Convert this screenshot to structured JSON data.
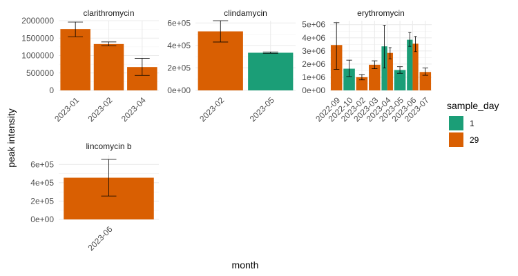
{
  "chart_data": {
    "type": "bar",
    "xlabel": "month",
    "ylabel": "peak intensity",
    "legend": {
      "title": "sample_day",
      "placement": "right",
      "entries": [
        {
          "label": "1",
          "color": "#1b9e77"
        },
        {
          "label": "29",
          "color": "#d95f02"
        }
      ]
    },
    "grid": true,
    "panels": [
      {
        "title": "clarithromycin",
        "ylim": [
          0,
          2000000
        ],
        "yticks": [
          0,
          500000,
          1000000,
          1500000,
          2000000
        ],
        "ytick_labels": [
          "0",
          "500000",
          "1000000",
          "1500000",
          "2000000"
        ],
        "categories": [
          "2023-01",
          "2023-02",
          "2023-04"
        ],
        "bars": [
          {
            "category": "2023-01",
            "sample_day": "29",
            "value": 1760000,
            "err_low": 1540000,
            "err_high": 1960000
          },
          {
            "category": "2023-02",
            "sample_day": "29",
            "value": 1330000,
            "err_low": 1280000,
            "err_high": 1390000
          },
          {
            "category": "2023-04",
            "sample_day": "29",
            "value": 670000,
            "err_low": 430000,
            "err_high": 920000
          }
        ]
      },
      {
        "title": "clindamycin",
        "ylim": [
          0,
          620000
        ],
        "yticks": [
          0,
          200000,
          400000,
          600000
        ],
        "ytick_labels": [
          "0e+00",
          "2e+05",
          "4e+05",
          "6e+05"
        ],
        "categories": [
          "2023-02",
          "2023-05"
        ],
        "bars": [
          {
            "category": "2023-02",
            "sample_day": "29",
            "value": 525000,
            "err_low": 430000,
            "err_high": 620000
          },
          {
            "category": "2023-05",
            "sample_day": "1",
            "value": 335000,
            "err_low": 330000,
            "err_high": 342000
          }
        ]
      },
      {
        "title": "erythromycin",
        "ylim": [
          0,
          5300000
        ],
        "yticks": [
          0,
          1000000,
          2000000,
          3000000,
          4000000,
          5000000
        ],
        "ytick_labels": [
          "0e+00",
          "1e+06",
          "2e+06",
          "3e+06",
          "4e+06",
          "5e+06"
        ],
        "categories": [
          "2022-09",
          "2022-10",
          "2023-02",
          "2023-03",
          "2023-04",
          "2023-05",
          "2023-06",
          "2023-07"
        ],
        "bars": [
          {
            "category": "2022-09",
            "sample_day": "29",
            "value": 3450000,
            "err_low": 1600000,
            "err_high": 5150000
          },
          {
            "category": "2022-10",
            "sample_day": "1",
            "value": 1650000,
            "err_low": 1050000,
            "err_high": 2300000
          },
          {
            "category": "2023-02",
            "sample_day": "29",
            "value": 1000000,
            "err_low": 800000,
            "err_high": 1200000
          },
          {
            "category": "2023-03",
            "sample_day": "29",
            "value": 1950000,
            "err_low": 1650000,
            "err_high": 2250000
          },
          {
            "category": "2023-04",
            "sample_day": "1",
            "value": 3350000,
            "err_low": 1700000,
            "err_high": 4950000
          },
          {
            "category": "2023-04",
            "sample_day": "29",
            "value": 2850000,
            "err_low": 2400000,
            "err_high": 3250000
          },
          {
            "category": "2023-05",
            "sample_day": "1",
            "value": 1550000,
            "err_low": 1300000,
            "err_high": 1800000
          },
          {
            "category": "2023-06",
            "sample_day": "1",
            "value": 3850000,
            "err_low": 3350000,
            "err_high": 4400000
          },
          {
            "category": "2023-06",
            "sample_day": "29",
            "value": 3550000,
            "err_low": 2950000,
            "err_high": 4100000
          },
          {
            "category": "2023-07",
            "sample_day": "29",
            "value": 1400000,
            "err_low": 1150000,
            "err_high": 1700000
          }
        ]
      },
      {
        "title": "lincomycin b",
        "ylim": [
          0,
          700000
        ],
        "yticks": [
          0,
          200000,
          400000,
          600000
        ],
        "ytick_labels": [
          "0e+00",
          "2e+05",
          "4e+05",
          "6e+05"
        ],
        "categories": [
          "2023-06"
        ],
        "bars": [
          {
            "category": "2023-06",
            "sample_day": "29",
            "value": 455000,
            "err_low": 255000,
            "err_high": 655000
          }
        ]
      }
    ]
  }
}
